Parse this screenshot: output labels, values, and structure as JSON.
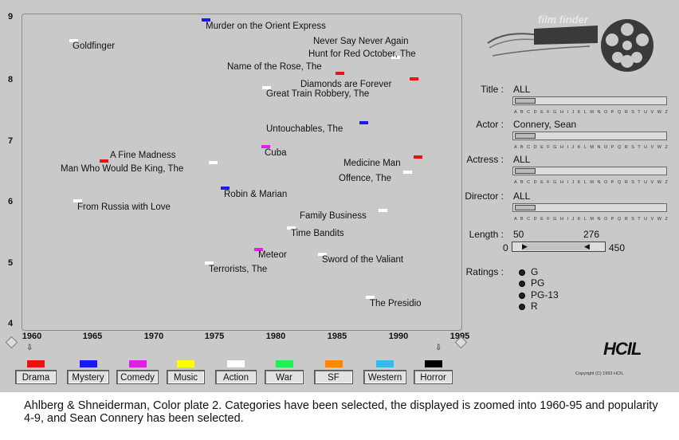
{
  "plot": {
    "y_ticks": [
      "9",
      "8",
      "7",
      "6",
      "5",
      "4"
    ],
    "x_ticks": [
      "1960",
      "1965",
      "1970",
      "1975",
      "1980",
      "1985",
      "1990",
      "1995"
    ],
    "movies": [
      {
        "title": "Murder on the Orient Express",
        "color": "#1a1af0"
      },
      {
        "title": "Goldfinger",
        "color": "#ffffff"
      },
      {
        "title": "Never Say Never Again",
        "color": "#ffffff"
      },
      {
        "title": "Hunt for Red October, The",
        "color": "#ee1111"
      },
      {
        "title": "Name of the Rose, The",
        "color": "#ee1111"
      },
      {
        "title": "Diamonds are Forever",
        "color": "#ffffff"
      },
      {
        "title": "Great Train Robbery, The",
        "color": "#1a1af0"
      },
      {
        "title": "Untouchables, The",
        "color": "#ee1111"
      },
      {
        "title": "A Fine Madness",
        "color": "#e020e0"
      },
      {
        "title": "Cuba",
        "color": "#ffffff"
      },
      {
        "title": "Man Who Would Be King, The",
        "color": "#ee1111"
      },
      {
        "title": "Medicine Man",
        "color": "#ffffff"
      },
      {
        "title": "Offence, The",
        "color": "#1a1af0"
      },
      {
        "title": "Robin & Marian",
        "color": "#ffffff"
      },
      {
        "title": "From Russia with Love",
        "color": "#ffffff"
      },
      {
        "title": "Family Business",
        "color": "#ffffff"
      },
      {
        "title": "Time Bandits",
        "color": "#e020e0"
      },
      {
        "title": "Meteor",
        "color": "#ffffff"
      },
      {
        "title": "Sword of the Valiant",
        "color": "#ffffff"
      },
      {
        "title": "Terrorists, The",
        "color": "#ffffff"
      },
      {
        "title": "The Presidio",
        "color": "#1a1af0"
      }
    ]
  },
  "categories": [
    {
      "label": "Drama",
      "color": "#ee1111"
    },
    {
      "label": "Mystery",
      "color": "#1a1af0"
    },
    {
      "label": "Comedy",
      "color": "#e020e0"
    },
    {
      "label": "Music",
      "color": "#ffff00"
    },
    {
      "label": "Action",
      "color": "#ffffff"
    },
    {
      "label": "War",
      "color": "#22ee55"
    },
    {
      "label": "SF",
      "color": "#ff8800"
    },
    {
      "label": "Western",
      "color": "#33bbee"
    },
    {
      "label": "Horror",
      "color": "#000000"
    }
  ],
  "logo_text": "film finder",
  "filters": {
    "title_label": "Title :",
    "title_value": "ALL",
    "actor_label": "Actor :",
    "actor_value": "Connery, Sean",
    "actress_label": "Actress :",
    "actress_value": "ALL",
    "director_label": "Director :",
    "director_value": "ALL",
    "alphabet": "A B C D E F G H I J K L M N O P Q R S T U V W Z"
  },
  "length": {
    "label": "Length :",
    "low": "50",
    "high": "276",
    "min": "0",
    "max": "450"
  },
  "ratings": {
    "label": "Ratings :",
    "options": [
      "G",
      "PG",
      "PG-13",
      "R"
    ]
  },
  "hcil_logo": "HCIL",
  "copyright": "Copyright (C) 1993 HCIL",
  "caption": "Ahlberg & Shneiderman, Color plate 2. Categories have been selected, the displayed is zoomed into 1960-95 and popularity 4-9, and Sean Connery has been selected."
}
